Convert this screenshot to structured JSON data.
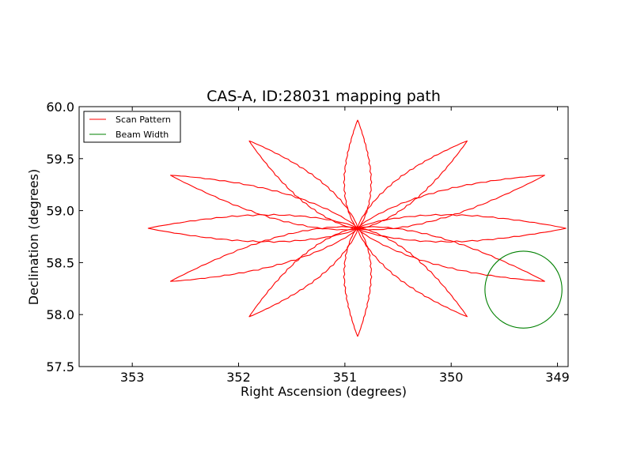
{
  "chart_data": {
    "type": "line",
    "title": "CAS-A, ID:28031 mapping path",
    "xlabel": "Right Ascension (degrees)",
    "ylabel": "Declination (degrees)",
    "xlim": [
      353.5,
      348.9
    ],
    "ylim": [
      57.5,
      60.0
    ],
    "x_ticks": [
      353,
      352,
      351,
      350,
      349
    ],
    "x_tick_labels": [
      "353",
      "352",
      "351",
      "350",
      "349"
    ],
    "y_ticks": [
      57.5,
      58.0,
      58.5,
      59.0,
      59.5,
      60.0
    ],
    "y_tick_labels": [
      "57.5",
      "58.0",
      "58.5",
      "59.0",
      "59.5",
      "60.0"
    ],
    "grid": false,
    "legend": {
      "placement": "top-left",
      "entries": [
        {
          "label": "Scan Pattern",
          "color": "#ff0000"
        },
        {
          "label": "Beam Width",
          "color": "#008000"
        }
      ]
    },
    "series": [
      {
        "name": "Scan Pattern",
        "color": "#ff0000",
        "center": {
          "x": 350.88,
          "y": 58.83
        },
        "petal_tips": [
          {
            "x": 350.88,
            "y": 59.87
          },
          {
            "x": 349.85,
            "y": 59.67
          },
          {
            "x": 349.12,
            "y": 59.34
          },
          {
            "x": 348.92,
            "y": 58.83
          },
          {
            "x": 349.12,
            "y": 58.32
          },
          {
            "x": 349.85,
            "y": 57.98
          },
          {
            "x": 350.88,
            "y": 57.79
          },
          {
            "x": 351.9,
            "y": 57.98
          },
          {
            "x": 352.64,
            "y": 58.32
          },
          {
            "x": 352.85,
            "y": 58.83
          },
          {
            "x": 352.64,
            "y": 59.34
          },
          {
            "x": 351.9,
            "y": 59.67
          }
        ]
      },
      {
        "name": "Beam Width",
        "color": "#008000",
        "center": {
          "x": 349.32,
          "y": 58.24
        },
        "radius_y": 0.37
      }
    ]
  }
}
